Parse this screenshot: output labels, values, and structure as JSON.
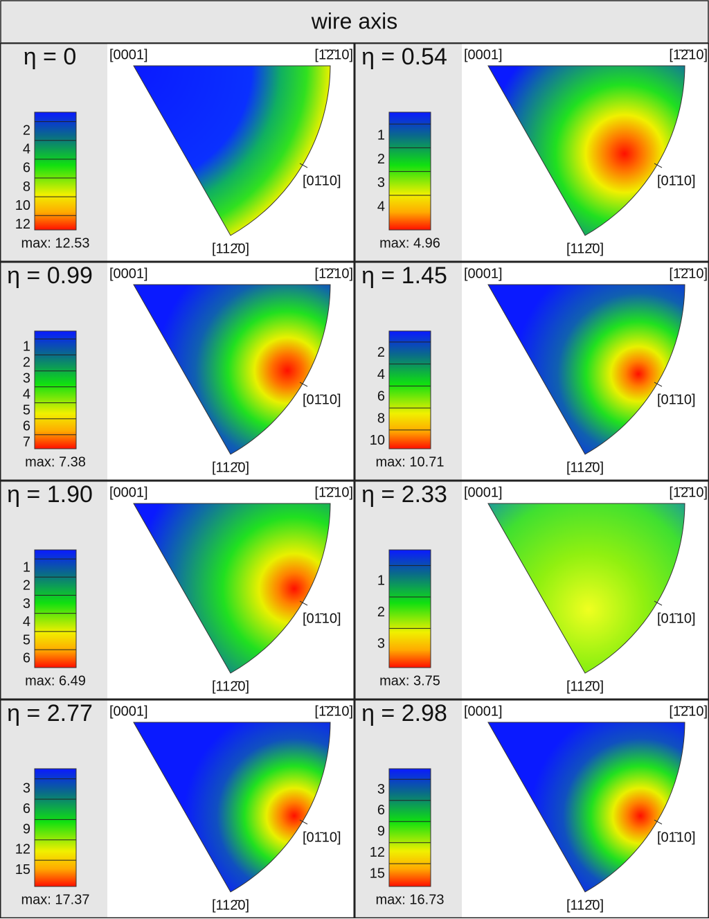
{
  "header": {
    "title": "wire axis"
  },
  "directions": {
    "top_left": "[0001]",
    "top_right": "[1̄2̄10]",
    "middle": "[01̄10]",
    "bottom": "[112̄0]"
  },
  "panels": [
    {
      "eta": "η = 0",
      "ticks": [
        2,
        4,
        6,
        8,
        10,
        12
      ],
      "max": 12.53,
      "max_label": "max: 12.53"
    },
    {
      "eta": "η = 0.54",
      "ticks": [
        1,
        2,
        3,
        4
      ],
      "max": 4.96,
      "max_label": "max: 4.96"
    },
    {
      "eta": "η = 0.99",
      "ticks": [
        1,
        2,
        3,
        4,
        5,
        6,
        7
      ],
      "max": 7.38,
      "max_label": "max: 7.38"
    },
    {
      "eta": "η = 1.45",
      "ticks": [
        2,
        4,
        6,
        8,
        10
      ],
      "max": 10.71,
      "max_label": "max: 10.71"
    },
    {
      "eta": "η = 1.90",
      "ticks": [
        1,
        2,
        3,
        4,
        5,
        6
      ],
      "max": 6.49,
      "max_label": "max: 6.49"
    },
    {
      "eta": "η = 2.33",
      "ticks": [
        1,
        2,
        3
      ],
      "max": 3.75,
      "max_label": "max: 3.75"
    },
    {
      "eta": "η = 2.77",
      "ticks": [
        3,
        6,
        9,
        12,
        15
      ],
      "max": 17.37,
      "max_label": "max: 17.37"
    },
    {
      "eta": "η = 2.98",
      "ticks": [
        3,
        6,
        9,
        12,
        15
      ],
      "max": 16.73,
      "max_label": "max: 16.73"
    }
  ]
}
